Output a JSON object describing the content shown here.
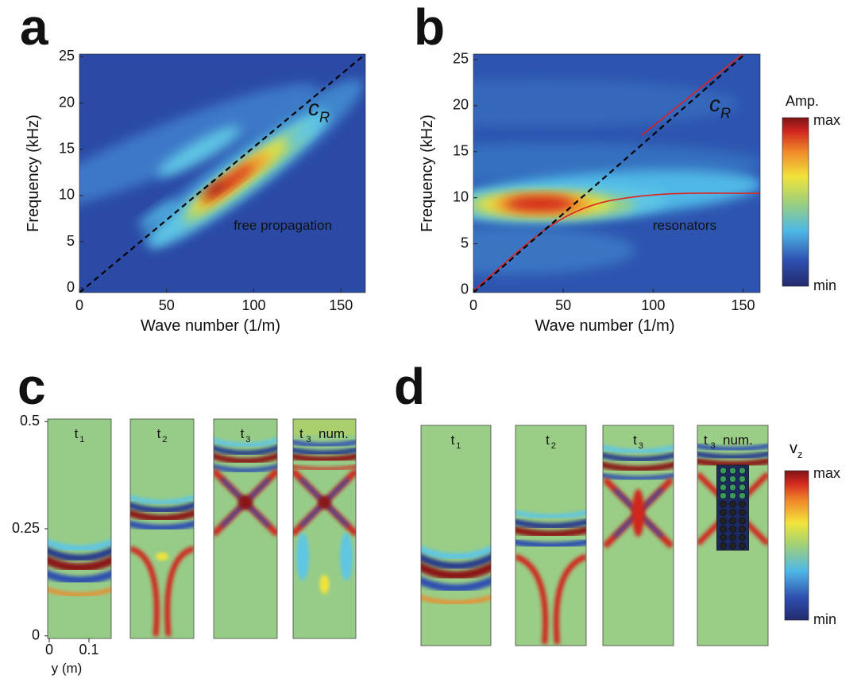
{
  "chart_data": [
    {
      "type": "heatmap",
      "label": "a",
      "xlabel": "Wave number (1/m)",
      "ylabel": "Frequency (kHz)",
      "xlim": [
        0,
        164
      ],
      "ylim": [
        -0.5,
        25.3
      ],
      "xticks": [
        0,
        50,
        100,
        150
      ],
      "yticks": [
        0,
        5,
        10,
        15,
        20,
        25
      ],
      "line_label": {
        "base": "c",
        "sub": "R"
      },
      "annotation": "free propagation"
    },
    {
      "type": "heatmap",
      "label": "b",
      "xlabel": "Wave number (1/m)",
      "ylabel": "Frequency (kHz)",
      "xlim": [
        0,
        159.5
      ],
      "ylim": [
        -0.3,
        25.6
      ],
      "xticks": [
        0,
        50,
        100,
        150
      ],
      "yticks": [
        0,
        5,
        10,
        15,
        20,
        25
      ],
      "line_label": {
        "base": "c",
        "sub": "R"
      },
      "annotation": "resonators",
      "colorbar": {
        "title": "Amp.",
        "max": "max",
        "min": "min"
      }
    },
    {
      "type": "snapshots",
      "label": "c",
      "xlabel": "y (m)",
      "xlim": [
        -0.004,
        0.156
      ],
      "ylim": [
        -0.006,
        0.506
      ],
      "xticks": [
        0,
        0.1
      ],
      "yticks": [
        0,
        0.25,
        0.5
      ],
      "snapshots": [
        {
          "base": "t",
          "sub": "1"
        },
        {
          "base": "t",
          "sub": "2"
        },
        {
          "base": "t",
          "sub": "3"
        },
        {
          "base": "t",
          "sub": "3",
          "note": "num."
        }
      ]
    },
    {
      "type": "snapshots",
      "label": "d",
      "snapshots": [
        {
          "base": "t",
          "sub": "1"
        },
        {
          "base": "t",
          "sub": "2"
        },
        {
          "base": "t",
          "sub": "3"
        },
        {
          "base": "t",
          "sub": "3",
          "note": "num."
        }
      ],
      "colorbar": {
        "title": {
          "base": "v",
          "sub": "z"
        },
        "max": "max",
        "min": "min"
      }
    }
  ]
}
